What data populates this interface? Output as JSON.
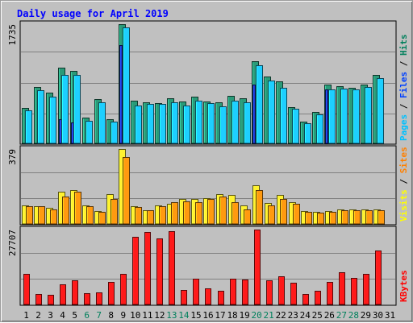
{
  "chart_data": {
    "type": "bar",
    "title": "Daily usage for April 2019",
    "categories": [
      "1",
      "2",
      "3",
      "4",
      "5",
      "6",
      "7",
      "8",
      "9",
      "10",
      "11",
      "12",
      "13",
      "14",
      "15",
      "16",
      "17",
      "18",
      "19",
      "20",
      "21",
      "22",
      "23",
      "24",
      "25",
      "26",
      "27",
      "28",
      "29",
      "30",
      "31"
    ],
    "weekend_days": [
      "6",
      "7",
      "13",
      "14",
      "20",
      "21",
      "27",
      "28"
    ],
    "panels": [
      {
        "name": "pages-files-hits",
        "max_label": "1735",
        "ymax": 1735,
        "legend": [
          {
            "label": "Pages",
            "color": "#00c0ff"
          },
          {
            "label": "Files",
            "color": "#0040ff"
          },
          {
            "label": "Hits",
            "color": "#00805c"
          }
        ],
        "series": [
          {
            "name": "Hits",
            "color": "#2a9a78",
            "values": [
              520,
              820,
              740,
              1100,
              1060,
              380,
              650,
              350,
              1735,
              620,
              600,
              590,
              660,
              610,
              680,
              610,
              600,
              690,
              660,
              1190,
              970,
              900,
              530,
              320,
              460,
              850,
              830,
              810,
              860,
              1000,
              null
            ]
          },
          {
            "name": "Files",
            "color": "#1d3bd0",
            "values": [
              0,
              0,
              0,
              350,
              300,
              0,
              0,
              0,
              1430,
              0,
              0,
              0,
              0,
              0,
              0,
              0,
              0,
              0,
              0,
              860,
              0,
              0,
              0,
              0,
              0,
              790,
              0,
              0,
              0,
              0,
              null
            ]
          },
          {
            "name": "Pages",
            "color": "#1ecfff",
            "values": [
              480,
              770,
              680,
              1000,
              1000,
              330,
              600,
              320,
              1690,
              550,
              570,
              570,
              600,
              550,
              620,
              590,
              540,
              620,
              600,
              1140,
              920,
              810,
              500,
              290,
              420,
              790,
              800,
              780,
              820,
              950,
              null
            ]
          }
        ]
      },
      {
        "name": "visits-sites",
        "max_label": "379",
        "ymax": 379,
        "legend": [
          {
            "label": "Visits",
            "color": "#ffff00"
          },
          {
            "label": "Sites",
            "color": "#ff8000"
          }
        ],
        "series": [
          {
            "name": "Visits",
            "color": "#fff230",
            "values": [
              95,
              90,
              80,
              165,
              170,
              95,
              65,
              150,
              379,
              90,
              70,
              95,
              100,
              125,
              125,
              130,
              150,
              145,
              95,
              195,
              105,
              145,
              110,
              65,
              60,
              65,
              75,
              75,
              75,
              75,
              null
            ]
          },
          {
            "name": "Sites",
            "color": "#ff9a10",
            "values": [
              90,
              88,
              75,
              140,
              165,
              88,
              60,
              125,
              340,
              85,
              68,
              90,
              110,
              115,
              110,
              125,
              140,
              110,
              75,
              170,
              95,
              125,
              100,
              62,
              58,
              62,
              70,
              70,
              70,
              70,
              null
            ]
          }
        ]
      },
      {
        "name": "kbytes",
        "max_label": "27707",
        "ymax": 27707,
        "legend": [
          {
            "label": "KBytes",
            "color": "#ff0000"
          }
        ],
        "series": [
          {
            "name": "KBytes",
            "color": "#ff1a1a",
            "values": [
              11300,
              3800,
              3700,
              7500,
              8900,
              4200,
              4500,
              8200,
              11300,
              25000,
              26700,
              24500,
              27200,
              5300,
              9600,
              5900,
              5000,
              9600,
              9300,
              27707,
              8800,
              10400,
              8000,
              3900,
              5000,
              8400,
              12000,
              9700,
              11200,
              19900,
              null
            ]
          }
        ]
      }
    ]
  },
  "colors": {
    "title": "#0000ff",
    "plot_bg": "#c0c0c0",
    "weekday_label": "#000000",
    "weekend_label": "#00805c",
    "grid": "#808080"
  }
}
